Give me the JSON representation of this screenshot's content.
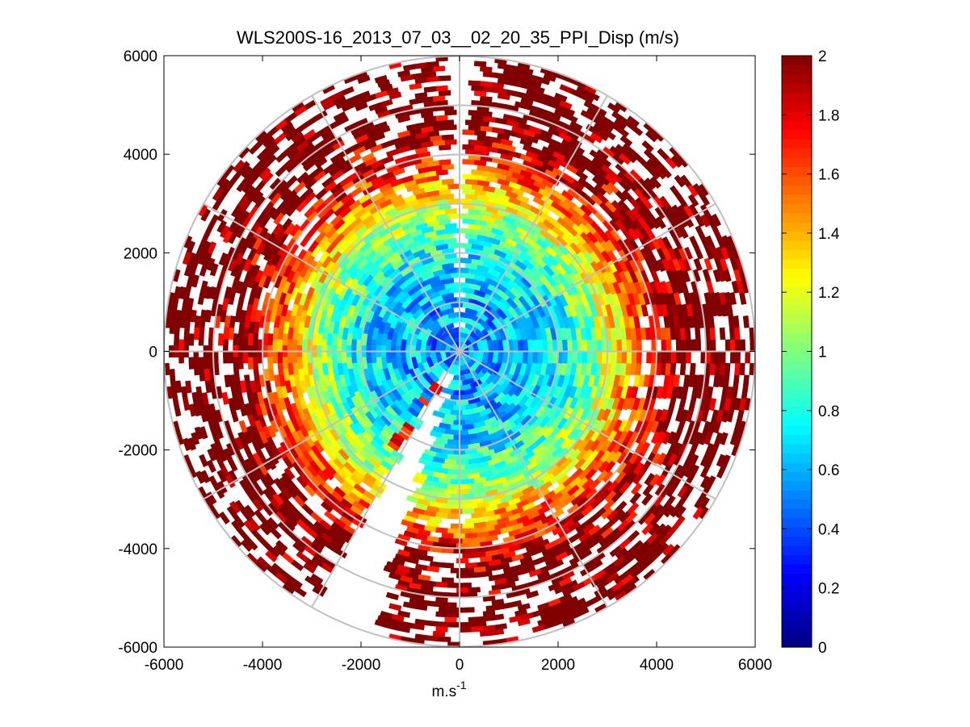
{
  "chart_data": {
    "type": "heatmap",
    "subtype": "polar-ppi-scan",
    "title": "WLS200S-16_2013_07_03__02_20_35_PPI_Disp (m/s)",
    "xlabel": "m.s",
    "xlabel_superscript": "-1",
    "ylabel": "",
    "xlim": [
      -6000,
      6000
    ],
    "ylim": [
      -6000,
      6000
    ],
    "x_ticks": [
      -6000,
      -4000,
      -2000,
      0,
      2000,
      4000,
      6000
    ],
    "y_ticks": [
      -6000,
      -4000,
      -2000,
      0,
      2000,
      4000,
      6000
    ],
    "x_tick_labels": [
      "-6000",
      "-4000",
      "-2000",
      "0",
      "2000",
      "4000",
      "6000"
    ],
    "y_tick_labels": [
      "-6000",
      "-4000",
      "-2000",
      "0",
      "2000",
      "4000",
      "6000"
    ],
    "max_range": 6000,
    "range_rings": [
      1000,
      2000,
      3000,
      4000,
      5000,
      6000
    ],
    "radial_spokes_deg": [
      0,
      30,
      60,
      90,
      120,
      150,
      180,
      210,
      240,
      270,
      300,
      330
    ],
    "grid": true,
    "colorbar": {
      "colormap": "jet",
      "clim": [
        0,
        2
      ],
      "ticks": [
        0,
        0.2,
        0.4,
        0.6,
        0.8,
        1,
        1.2,
        1.4,
        1.6,
        1.8,
        2
      ],
      "tick_labels": [
        "0",
        "0.2",
        "0.4",
        "0.6",
        "0.8",
        "1",
        "1.2",
        "1.4",
        "1.6",
        "1.8",
        "2"
      ],
      "levels": 64
    },
    "value_profile_by_range_m": [
      {
        "range": 0,
        "mean": 0.55
      },
      {
        "range": 1000,
        "mean": 0.6
      },
      {
        "range": 2000,
        "mean": 0.75
      },
      {
        "range": 2800,
        "mean": 1.05
      },
      {
        "range": 3400,
        "mean": 1.4
      },
      {
        "range": 4000,
        "mean": 1.75
      },
      {
        "range": 5000,
        "mean": 1.95
      },
      {
        "range": 6000,
        "mean": 2.0
      }
    ],
    "data_gaps_deg": [
      {
        "from": 88,
        "to": 92
      },
      {
        "from": 240,
        "to": 252
      }
    ],
    "high_value_ray_deg": 236
  }
}
